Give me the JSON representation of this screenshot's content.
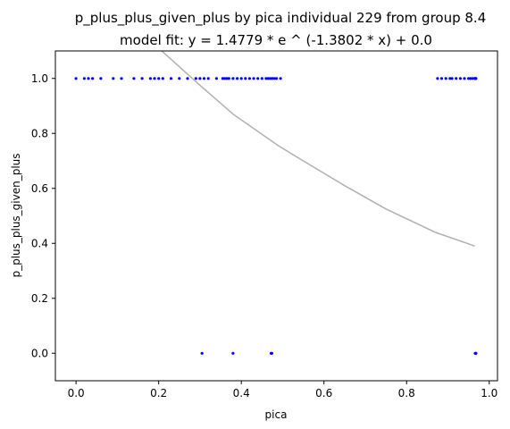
{
  "chart_data": {
    "type": "scatter",
    "title": "p_plus_plus_given_plus by pica individual 229 from group 8.4",
    "subtitle": "model fit: y = 1.4779 * e ^ (-1.3802 * x) + 0.0",
    "xlabel": "pica",
    "ylabel": "p_plus_plus_given_plus",
    "xlim": [
      -0.05,
      1.02
    ],
    "ylim": [
      -0.1,
      1.1
    ],
    "x_ticks": [
      0.0,
      0.2,
      0.4,
      0.6,
      0.8,
      1.0
    ],
    "x_tick_labels": [
      "0.0",
      "0.2",
      "0.4",
      "0.6",
      "0.8",
      "1.0"
    ],
    "y_ticks": [
      0.0,
      0.2,
      0.4,
      0.6,
      0.8,
      1.0
    ],
    "y_tick_labels": [
      "0.0",
      "0.2",
      "0.4",
      "0.6",
      "0.8",
      "1.0"
    ],
    "grid": false,
    "points_color": "#0000ff",
    "fit_color": "#b0b0b0",
    "points": [
      {
        "x": 0.0,
        "y": 1.0
      },
      {
        "x": 0.02,
        "y": 1.0
      },
      {
        "x": 0.03,
        "y": 1.0
      },
      {
        "x": 0.04,
        "y": 1.0
      },
      {
        "x": 0.06,
        "y": 1.0
      },
      {
        "x": 0.09,
        "y": 1.0
      },
      {
        "x": 0.11,
        "y": 1.0
      },
      {
        "x": 0.14,
        "y": 1.0
      },
      {
        "x": 0.16,
        "y": 1.0
      },
      {
        "x": 0.18,
        "y": 1.0
      },
      {
        "x": 0.19,
        "y": 1.0
      },
      {
        "x": 0.2,
        "y": 1.0
      },
      {
        "x": 0.21,
        "y": 1.0
      },
      {
        "x": 0.23,
        "y": 1.0
      },
      {
        "x": 0.25,
        "y": 1.0
      },
      {
        "x": 0.27,
        "y": 1.0
      },
      {
        "x": 0.29,
        "y": 1.0
      },
      {
        "x": 0.3,
        "y": 1.0
      },
      {
        "x": 0.31,
        "y": 1.0
      },
      {
        "x": 0.32,
        "y": 1.0
      },
      {
        "x": 0.34,
        "y": 1.0
      },
      {
        "x": 0.355,
        "y": 1.0
      },
      {
        "x": 0.36,
        "y": 1.0
      },
      {
        "x": 0.365,
        "y": 1.0
      },
      {
        "x": 0.37,
        "y": 1.0
      },
      {
        "x": 0.38,
        "y": 1.0
      },
      {
        "x": 0.39,
        "y": 1.0
      },
      {
        "x": 0.4,
        "y": 1.0
      },
      {
        "x": 0.41,
        "y": 1.0
      },
      {
        "x": 0.42,
        "y": 1.0
      },
      {
        "x": 0.43,
        "y": 1.0
      },
      {
        "x": 0.44,
        "y": 1.0
      },
      {
        "x": 0.45,
        "y": 1.0
      },
      {
        "x": 0.46,
        "y": 1.0
      },
      {
        "x": 0.465,
        "y": 1.0
      },
      {
        "x": 0.47,
        "y": 1.0
      },
      {
        "x": 0.475,
        "y": 1.0
      },
      {
        "x": 0.48,
        "y": 1.0
      },
      {
        "x": 0.485,
        "y": 1.0
      },
      {
        "x": 0.495,
        "y": 1.0
      },
      {
        "x": 0.875,
        "y": 1.0
      },
      {
        "x": 0.885,
        "y": 1.0
      },
      {
        "x": 0.895,
        "y": 1.0
      },
      {
        "x": 0.905,
        "y": 1.0
      },
      {
        "x": 0.91,
        "y": 1.0
      },
      {
        "x": 0.92,
        "y": 1.0
      },
      {
        "x": 0.93,
        "y": 1.0
      },
      {
        "x": 0.94,
        "y": 1.0
      },
      {
        "x": 0.95,
        "y": 1.0
      },
      {
        "x": 0.955,
        "y": 1.0
      },
      {
        "x": 0.96,
        "y": 1.0
      },
      {
        "x": 0.965,
        "y": 1.0
      },
      {
        "x": 0.966,
        "y": 1.0
      },
      {
        "x": 0.967,
        "y": 1.0
      },
      {
        "x": 0.968,
        "y": 1.0
      },
      {
        "x": 0.305,
        "y": 0.0
      },
      {
        "x": 0.38,
        "y": 0.0
      },
      {
        "x": 0.472,
        "y": 0.0
      },
      {
        "x": 0.474,
        "y": 0.0
      },
      {
        "x": 0.966,
        "y": 0.0
      },
      {
        "x": 0.967,
        "y": 0.0
      },
      {
        "x": 0.968,
        "y": 0.0
      }
    ],
    "fit_curve": [
      {
        "x": 0.2,
        "y": 1.11
      },
      {
        "x": 0.3,
        "y": 0.975
      },
      {
        "x": 0.38,
        "y": 0.87
      },
      {
        "x": 0.49,
        "y": 0.755
      },
      {
        "x": 0.55,
        "y": 0.7
      },
      {
        "x": 0.65,
        "y": 0.61
      },
      {
        "x": 0.75,
        "y": 0.525
      },
      {
        "x": 0.87,
        "y": 0.44
      },
      {
        "x": 0.965,
        "y": 0.39
      }
    ]
  }
}
